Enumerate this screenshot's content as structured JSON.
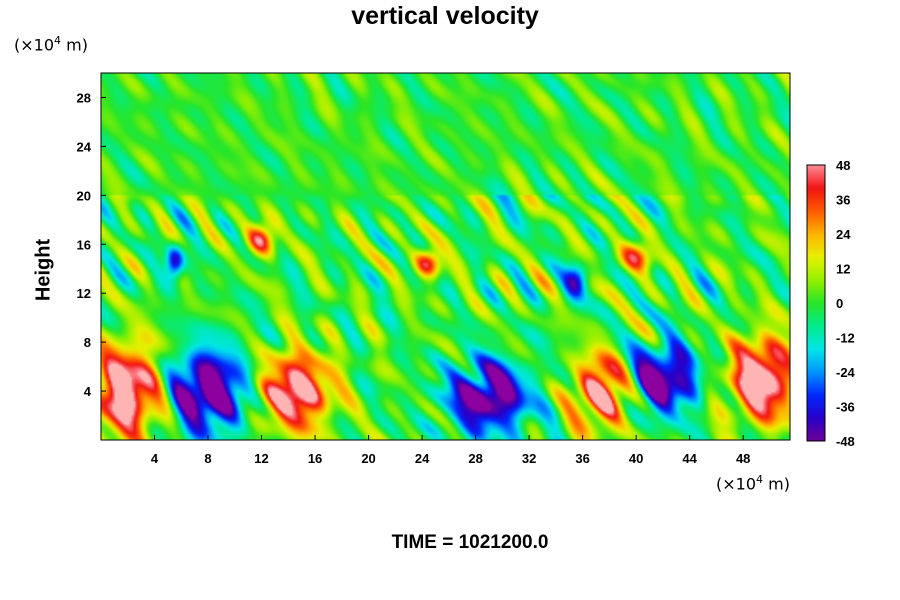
{
  "chart_data": {
    "type": "heatmap",
    "title": "vertical velocity",
    "ylabel": "Height",
    "x_unit_text": "(×10",
    "x_unit_exp": "4",
    "x_unit_suffix": " m)",
    "y_unit_text": "(×10",
    "y_unit_exp": "4",
    "y_unit_suffix": " m)",
    "xlim": [
      0,
      51.5
    ],
    "ylim": [
      0,
      30
    ],
    "x_ticks": [
      4,
      8,
      12,
      16,
      20,
      24,
      28,
      32,
      36,
      40,
      44,
      48
    ],
    "y_ticks": [
      4,
      8,
      12,
      16,
      20,
      24,
      28
    ],
    "colorbar": {
      "range": [
        -48,
        48
      ],
      "ticks": [
        48,
        36,
        24,
        12,
        0,
        -12,
        -24,
        -36,
        -48
      ]
    },
    "time_label": "TIME = 1021200.0",
    "features": [
      {
        "name": "updraft",
        "x": 2.0,
        "y": 4.0,
        "w": 3.0,
        "h": 4.5,
        "value": 52
      },
      {
        "name": "downdraft",
        "x": 8.0,
        "y": 4.0,
        "w": 3.5,
        "h": 4.0,
        "value": -52
      },
      {
        "name": "updraft",
        "x": 14.5,
        "y": 4.0,
        "w": 3.2,
        "h": 3.6,
        "value": 50
      },
      {
        "name": "downdraft",
        "x": 29.0,
        "y": 3.5,
        "w": 3.5,
        "h": 3.4,
        "value": -50
      },
      {
        "name": "updraft",
        "x": 37.5,
        "y": 4.0,
        "w": 2.5,
        "h": 3.5,
        "value": 46
      },
      {
        "name": "downdraft",
        "x": 42.0,
        "y": 5.0,
        "w": 3.0,
        "h": 3.2,
        "value": -50
      },
      {
        "name": "updraft",
        "x": 49.5,
        "y": 5.0,
        "w": 3.0,
        "h": 4.0,
        "value": 52
      },
      {
        "name": "updraft",
        "x": 12.0,
        "y": 16.5,
        "w": 1.2,
        "h": 1.6,
        "value": 36
      },
      {
        "name": "updraft",
        "x": 24.5,
        "y": 14.5,
        "w": 1.2,
        "h": 1.4,
        "value": 36
      },
      {
        "name": "downdraft",
        "x": 5.5,
        "y": 14.5,
        "w": 0.8,
        "h": 1.6,
        "value": -40
      },
      {
        "name": "downdraft",
        "x": 35.5,
        "y": 13.0,
        "w": 1.0,
        "h": 1.6,
        "value": -32
      },
      {
        "name": "updraft",
        "x": 40.0,
        "y": 15.0,
        "w": 1.5,
        "h": 1.5,
        "value": 30
      }
    ]
  }
}
